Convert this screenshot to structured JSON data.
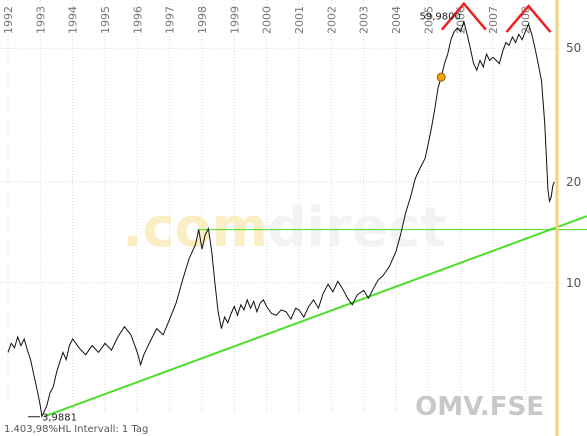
{
  "chart_data": {
    "type": "line",
    "symbol": "OMV.FSE",
    "watermark_prefix": ".com",
    "watermark_suffix": "direct",
    "footer": "1.403,98%HL Intervall: 1 Tag",
    "x_years": [
      "1992",
      "1993",
      "1994",
      "1995",
      "1996",
      "1997",
      "1998",
      "1999",
      "2000",
      "2001",
      "2002",
      "2003",
      "2004",
      "2005",
      "2006",
      "2007",
      "2008"
    ],
    "y_scale": "log",
    "y_ticks": [
      "10",
      "20",
      "50"
    ],
    "ylim": [
      3.9,
      65
    ],
    "annotations": {
      "high": "59,9800",
      "low": "3,9881"
    },
    "series": [
      {
        "points": [
          [
            "1992.00",
            6.2
          ],
          [
            "1992.10",
            6.6
          ],
          [
            "1992.20",
            6.4
          ],
          [
            "1992.30",
            6.9
          ],
          [
            "1992.40",
            6.5
          ],
          [
            "1992.50",
            6.8
          ],
          [
            "1992.60",
            6.3
          ],
          [
            "1992.70",
            5.9
          ],
          [
            "1992.80",
            5.3
          ],
          [
            "1992.90",
            4.8
          ],
          [
            "1993.00",
            4.3
          ],
          [
            "1993.05",
            4.0
          ],
          [
            "1993.10",
            4.1
          ],
          [
            "1993.20",
            4.3
          ],
          [
            "1993.30",
            4.7
          ],
          [
            "1993.40",
            4.9
          ],
          [
            "1993.50",
            5.4
          ],
          [
            "1993.60",
            5.8
          ],
          [
            "1993.70",
            6.2
          ],
          [
            "1993.80",
            5.9
          ],
          [
            "1993.90",
            6.5
          ],
          [
            "1994.00",
            6.8
          ],
          [
            "1994.20",
            6.4
          ],
          [
            "1994.40",
            6.1
          ],
          [
            "1994.60",
            6.5
          ],
          [
            "1994.80",
            6.2
          ],
          [
            "1995.00",
            6.6
          ],
          [
            "1995.20",
            6.3
          ],
          [
            "1995.40",
            6.9
          ],
          [
            "1995.60",
            7.4
          ],
          [
            "1995.80",
            7.0
          ],
          [
            "1996.00",
            6.2
          ],
          [
            "1996.10",
            5.7
          ],
          [
            "1996.20",
            6.1
          ],
          [
            "1996.40",
            6.7
          ],
          [
            "1996.60",
            7.3
          ],
          [
            "1996.80",
            7.0
          ],
          [
            "1997.00",
            7.8
          ],
          [
            "1997.20",
            8.7
          ],
          [
            "1997.40",
            10.2
          ],
          [
            "1997.60",
            11.8
          ],
          [
            "1997.80",
            13.0
          ],
          [
            "1997.90",
            14.4
          ],
          [
            "1998.00",
            12.6
          ],
          [
            "1998.10",
            13.9
          ],
          [
            "1998.20",
            14.5
          ],
          [
            "1998.30",
            12.4
          ],
          [
            "1998.40",
            10.0
          ],
          [
            "1998.50",
            8.2
          ],
          [
            "1998.60",
            7.3
          ],
          [
            "1998.70",
            7.9
          ],
          [
            "1998.80",
            7.6
          ],
          [
            "1998.90",
            8.1
          ],
          [
            "1999.00",
            8.5
          ],
          [
            "1999.10",
            8.0
          ],
          [
            "1999.20",
            8.6
          ],
          [
            "1999.30",
            8.3
          ],
          [
            "1999.40",
            8.9
          ],
          [
            "1999.50",
            8.4
          ],
          [
            "1999.60",
            8.8
          ],
          [
            "1999.70",
            8.2
          ],
          [
            "1999.80",
            8.7
          ],
          [
            "1999.90",
            8.9
          ],
          [
            "2000.00",
            8.5
          ],
          [
            "2000.15",
            8.1
          ],
          [
            "2000.30",
            8.0
          ],
          [
            "2000.45",
            8.3
          ],
          [
            "2000.60",
            8.2
          ],
          [
            "2000.75",
            7.8
          ],
          [
            "2000.90",
            8.4
          ],
          [
            "2001.00",
            8.3
          ],
          [
            "2001.15",
            7.9
          ],
          [
            "2001.30",
            8.5
          ],
          [
            "2001.45",
            8.9
          ],
          [
            "2001.60",
            8.4
          ],
          [
            "2001.75",
            9.3
          ],
          [
            "2001.90",
            9.9
          ],
          [
            "2002.05",
            9.4
          ],
          [
            "2002.20",
            10.1
          ],
          [
            "2002.35",
            9.6
          ],
          [
            "2002.50",
            9.0
          ],
          [
            "2002.65",
            8.6
          ],
          [
            "2002.80",
            9.2
          ],
          [
            "2003.00",
            9.5
          ],
          [
            "2003.15",
            9.0
          ],
          [
            "2003.30",
            9.6
          ],
          [
            "2003.45",
            10.2
          ],
          [
            "2003.60",
            10.5
          ],
          [
            "2003.80",
            11.2
          ],
          [
            "2004.00",
            12.4
          ],
          [
            "2004.15",
            14.0
          ],
          [
            "2004.30",
            16.2
          ],
          [
            "2004.45",
            18.0
          ],
          [
            "2004.60",
            20.5
          ],
          [
            "2004.75",
            22.0
          ],
          [
            "2004.90",
            23.5
          ],
          [
            "2005.00",
            26.0
          ],
          [
            "2005.10",
            29.0
          ],
          [
            "2005.20",
            33.0
          ],
          [
            "2005.30",
            38.0
          ],
          [
            "2005.40",
            41.0
          ],
          [
            "2005.50",
            45.0
          ],
          [
            "2005.60",
            48.0
          ],
          [
            "2005.70",
            53.0
          ],
          [
            "2005.80",
            56.0
          ],
          [
            "2005.90",
            57.5
          ],
          [
            "2006.00",
            56.0
          ],
          [
            "2006.10",
            59.98
          ],
          [
            "2006.20",
            55.0
          ],
          [
            "2006.30",
            50.0
          ],
          [
            "2006.40",
            45.0
          ],
          [
            "2006.50",
            43.0
          ],
          [
            "2006.60",
            46.0
          ],
          [
            "2006.70",
            44.0
          ],
          [
            "2006.80",
            48.0
          ],
          [
            "2006.90",
            46.0
          ],
          [
            "2007.00",
            47.0
          ],
          [
            "2007.10",
            46.0
          ],
          [
            "2007.20",
            45.0
          ],
          [
            "2007.30",
            49.0
          ],
          [
            "2007.40",
            52.0
          ],
          [
            "2007.50",
            51.0
          ],
          [
            "2007.60",
            54.0
          ],
          [
            "2007.70",
            52.0
          ],
          [
            "2007.80",
            55.0
          ],
          [
            "2007.90",
            53.0
          ],
          [
            "2008.00",
            56.0
          ],
          [
            "2008.10",
            59.0
          ],
          [
            "2008.20",
            55.0
          ],
          [
            "2008.30",
            50.0
          ],
          [
            "2008.40",
            45.0
          ],
          [
            "2008.50",
            40.0
          ],
          [
            "2008.60",
            30.0
          ],
          [
            "2008.65",
            24.0
          ],
          [
            "2008.70",
            19.0
          ],
          [
            "2008.75",
            17.5
          ],
          [
            "2008.80",
            18.0
          ],
          [
            "2008.85",
            19.5
          ],
          [
            "2008.90",
            20.0
          ]
        ]
      }
    ],
    "colors": {
      "price": "#111111",
      "support": "#4ddd2a",
      "resistance": "#44dd22",
      "marker": "#ee2222",
      "accent": "#f4d27a",
      "dot": "#f0a400"
    }
  }
}
